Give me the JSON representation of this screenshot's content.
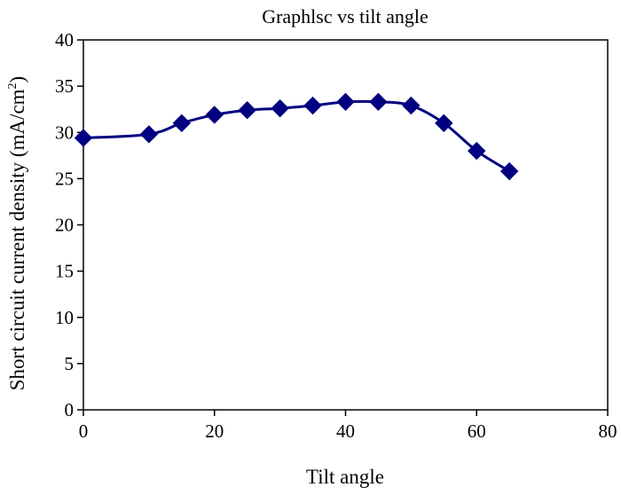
{
  "chart_data": {
    "type": "line",
    "title": "Graphlsc vs tilt angle",
    "xlabel": "Tilt angle",
    "ylabel_main": "Short circuit current density (mA/cm",
    "ylabel_sup": "2",
    "ylabel_close": ")",
    "xlim": [
      0,
      80
    ],
    "ylim": [
      0,
      40
    ],
    "xticks": [
      "0",
      "20",
      "40",
      "60",
      "80"
    ],
    "yticks": [
      "0",
      "5",
      "10",
      "15",
      "20",
      "25",
      "30",
      "35",
      "40"
    ],
    "grid": false,
    "legend": "none",
    "series": [
      {
        "marker": "diamond",
        "color": "#000080",
        "points": [
          {
            "x": 0,
            "y": 29.4
          },
          {
            "x": 10,
            "y": 29.8
          },
          {
            "x": 15,
            "y": 31.0
          },
          {
            "x": 20,
            "y": 31.9
          },
          {
            "x": 25,
            "y": 32.4
          },
          {
            "x": 30,
            "y": 32.6
          },
          {
            "x": 35,
            "y": 32.9
          },
          {
            "x": 40,
            "y": 33.3
          },
          {
            "x": 45,
            "y": 33.3
          },
          {
            "x": 50,
            "y": 32.9
          },
          {
            "x": 55,
            "y": 31.0
          },
          {
            "x": 60,
            "y": 28.0
          },
          {
            "x": 65,
            "y": 25.8
          }
        ]
      }
    ]
  }
}
